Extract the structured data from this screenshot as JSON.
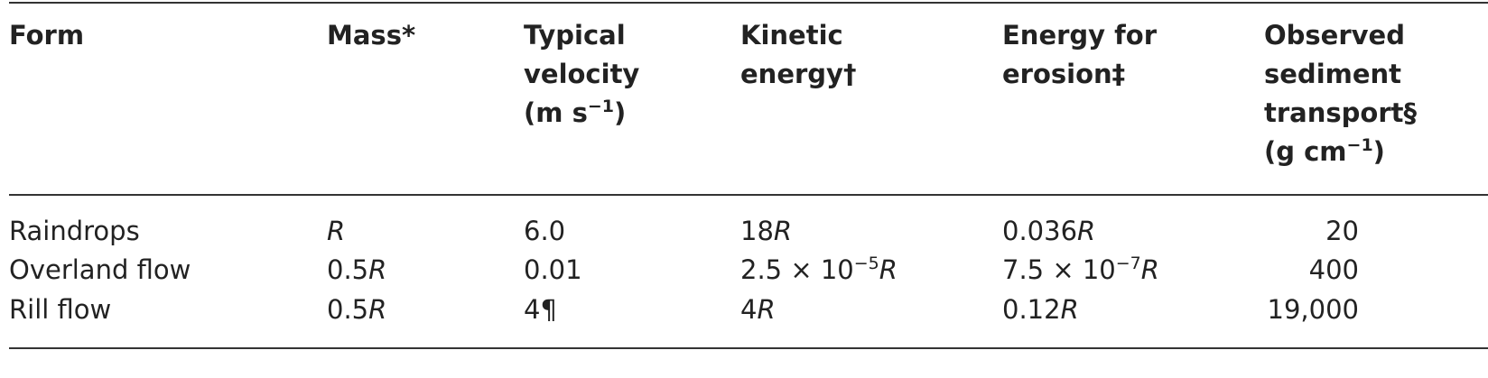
{
  "table": {
    "header": [
      [
        "Form"
      ],
      [
        "Mass*"
      ],
      [
        "Typical",
        "velocity",
        "(m s",
        "−1",
        ")"
      ],
      [
        "Kinetic",
        "energy†"
      ],
      [
        "Energy for",
        "erosion‡"
      ],
      [
        "Observed",
        "sediment",
        "transport§",
        "(g cm",
        "−1",
        ")"
      ]
    ],
    "rows": [
      [
        [
          "Raindrops"
        ],
        [
          "R"
        ],
        [
          "6.0"
        ],
        [
          "18",
          "R"
        ],
        [
          "0.036",
          "R"
        ],
        [
          "20"
        ]
      ],
      [
        [
          "Overland flow"
        ],
        [
          "0.5",
          "R"
        ],
        [
          "0.01"
        ],
        [
          "2.5 × 10",
          "−5",
          "R"
        ],
        [
          "7.5 × 10",
          "−7",
          "R"
        ],
        [
          "400"
        ]
      ],
      [
        [
          "Rill flow"
        ],
        [
          "0.5",
          "R"
        ],
        [
          "4¶"
        ],
        [
          "4",
          "R"
        ],
        [
          "0.12",
          "R"
        ],
        [
          "19,000"
        ]
      ]
    ]
  }
}
